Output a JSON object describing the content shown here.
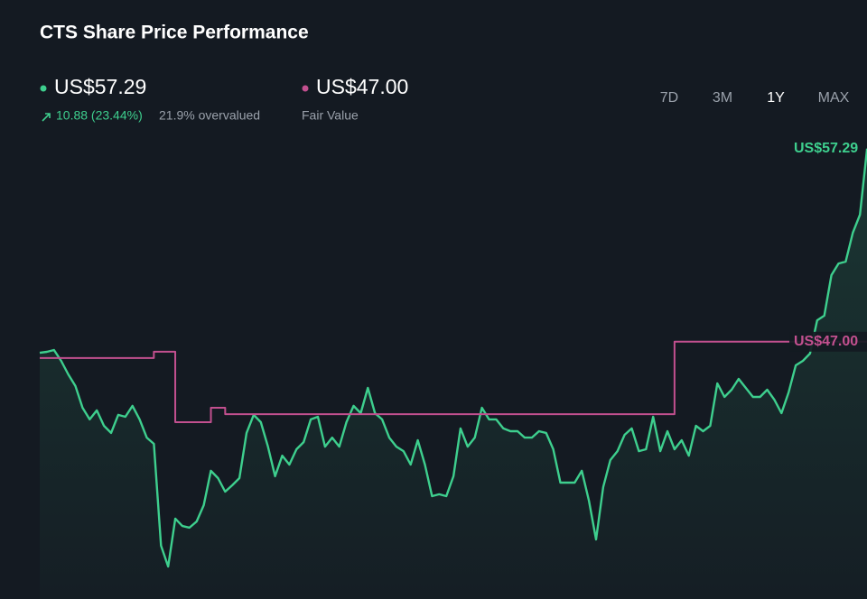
{
  "title": "CTS Share Price Performance",
  "header": {
    "price": "US$57.29",
    "change": "10.88 (23.44%)",
    "status": "21.9% overvalued",
    "fair_value": "US$47.00"
  },
  "ranges": [
    "7D",
    "3M",
    "1Y",
    "MAX"
  ],
  "selected_range": "1Y",
  "chart_data": {
    "type": "line",
    "ylim": [
      33,
      58
    ],
    "series": [
      {
        "color": "#3ecf8e",
        "values": [
          46.41,
          46.46,
          46.56,
          45.98,
          45.26,
          44.64,
          43.48,
          42.86,
          43.34,
          42.52,
          42.14,
          43.1,
          43.0,
          43.58,
          42.86,
          41.89,
          41.56,
          36.13,
          35.02,
          37.57,
          37.18,
          37.09,
          37.42,
          38.29,
          40.12,
          39.73,
          39.01,
          39.35,
          39.73,
          42.14,
          43.1,
          42.71,
          41.41,
          39.83,
          40.93,
          40.45,
          41.27,
          41.65,
          42.86,
          43.0,
          41.41,
          41.89,
          41.41,
          42.71,
          43.58,
          43.19,
          44.54,
          43.19,
          42.86,
          41.89,
          41.41,
          41.17,
          40.45,
          41.75,
          40.45,
          38.77,
          38.87,
          38.77,
          39.83,
          42.38,
          41.41,
          41.89,
          43.48,
          42.86,
          42.86,
          42.38,
          42.23,
          42.23,
          41.89,
          41.89,
          42.23,
          42.14,
          41.27,
          39.49,
          39.49,
          39.49,
          40.12,
          38.53,
          36.46,
          39.25,
          40.69,
          41.17,
          42.04,
          42.38,
          41.17,
          41.27,
          43.0,
          41.17,
          42.23,
          41.27,
          41.75,
          40.93,
          42.52,
          42.23,
          42.52,
          44.78,
          44.06,
          44.44,
          45.02,
          44.54,
          44.06,
          44.06,
          44.44,
          43.91,
          43.19,
          44.3,
          45.74,
          45.98,
          46.37,
          48.14,
          48.39,
          50.55,
          51.17,
          51.27,
          52.81,
          53.77,
          57.29
        ]
      },
      {
        "name": "Fair Value",
        "color": "#c2508f",
        "step": true,
        "values": [
          46.13,
          46.13,
          46.13,
          46.13,
          46.13,
          46.13,
          46.13,
          46.13,
          46.13,
          46.13,
          46.13,
          46.13,
          46.13,
          46.13,
          46.13,
          46.13,
          46.47,
          46.47,
          46.47,
          42.71,
          42.71,
          42.71,
          42.71,
          42.71,
          43.48,
          43.48,
          43.14,
          43.14,
          43.14,
          43.14,
          43.14,
          43.14,
          43.14,
          43.14,
          43.14,
          43.14,
          43.14,
          43.14,
          43.14,
          43.14,
          43.14,
          43.14,
          43.14,
          43.14,
          43.14,
          43.14,
          43.14,
          43.14,
          43.14,
          43.14,
          43.14,
          43.14,
          43.14,
          43.14,
          43.14,
          43.14,
          43.14,
          43.14,
          43.14,
          43.14,
          43.14,
          43.14,
          43.14,
          43.14,
          43.14,
          43.14,
          43.14,
          43.14,
          43.14,
          43.14,
          43.14,
          43.14,
          43.14,
          43.14,
          43.14,
          43.14,
          43.14,
          43.14,
          43.14,
          43.14,
          43.14,
          43.14,
          43.14,
          43.14,
          43.14,
          43.14,
          43.14,
          43.14,
          43.14,
          47.0,
          47.0,
          47.0,
          47.0,
          47.0,
          47.0,
          47.0,
          47.0,
          47.0,
          47.0,
          47.0,
          47.0,
          47.0,
          47.0,
          47.0,
          47.0,
          47.0,
          47.0,
          47.0,
          47.0,
          47.0,
          47.0,
          47.0,
          47.0,
          47.0,
          47.0,
          47.0,
          47.0,
          47.0
        ]
      }
    ]
  }
}
